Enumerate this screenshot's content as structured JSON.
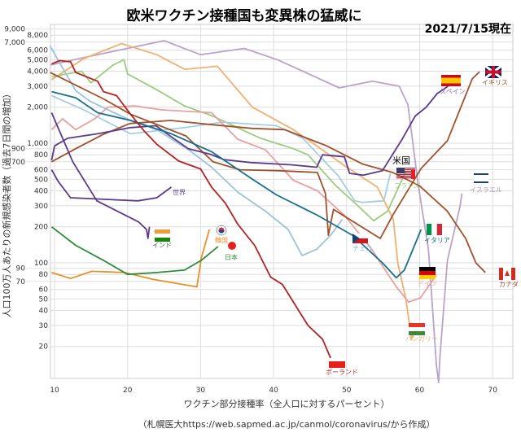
{
  "chart_data": {
    "type": "line",
    "title": "欧米ワクチン接種国も変異株の猛威に",
    "date_note": "2021/7/15現在",
    "xlabel": "ワクチン部分接種率（全人口に対するパーセント）",
    "ylabel": "人口100万人あたりの新規感染者数（過去7日間の増加）",
    "source": "（札幌医大https://web.sapmed.ac.jp/canmol/coronavirus/から作成）",
    "xlim": [
      9.4,
      72.5
    ],
    "ylim": [
      9.5,
      10000
    ],
    "yscale": "log",
    "grid": true,
    "x_ticks": [
      10,
      20,
      30,
      40,
      50,
      60,
      70
    ],
    "x_tick_labels": [
      "10",
      "20",
      "30",
      "40",
      "50",
      "60",
      "70"
    ],
    "y_ticks": [
      20,
      30,
      40,
      50,
      60,
      70,
      80,
      90,
      100,
      200,
      300,
      400,
      500,
      600,
      700,
      800,
      900,
      1000,
      2000,
      3000,
      4000,
      5000,
      6000,
      7000,
      8000,
      9000
    ],
    "y_tick_labels": [
      "20",
      "30",
      "40",
      "50",
      "60",
      "70",
      "80",
      "90",
      "100",
      "200",
      "300",
      "400",
      "500",
      "600",
      "700",
      "800",
      "900",
      "1,000",
      "2,000",
      "3,000",
      "4,000",
      "5,000",
      "6,000",
      "7,000",
      "8,000",
      "9,000"
    ],
    "series": [
      {
        "name": "イスラエル",
        "color": "#b9a3cc",
        "points": [
          [
            9.4,
            4500
          ],
          [
            14,
            5200
          ],
          [
            25,
            7200
          ],
          [
            30,
            5500
          ],
          [
            36,
            6200
          ],
          [
            40.5,
            5000
          ],
          [
            44,
            4000
          ],
          [
            49,
            2900
          ],
          [
            53.5,
            3300
          ],
          [
            57.2,
            3000
          ],
          [
            58.4,
            2100
          ],
          [
            59.8,
            450
          ],
          [
            61.2,
            130
          ],
          [
            62.3,
            14
          ],
          [
            62.6,
            10
          ],
          [
            62.8,
            17
          ],
          [
            63.8,
            105
          ],
          [
            65.5,
            290
          ],
          [
            65.8,
            380
          ]
        ]
      },
      {
        "name": "ハンガリー",
        "color": "#f0b070",
        "points": [
          [
            9.6,
            3400
          ],
          [
            14,
            5100
          ],
          [
            19.2,
            6800
          ],
          [
            24,
            5500
          ],
          [
            27.8,
            4150
          ],
          [
            32.3,
            4400
          ],
          [
            37.1,
            2000
          ],
          [
            42.7,
            1300
          ],
          [
            46.7,
            880
          ],
          [
            49.7,
            650
          ],
          [
            54.2,
            430
          ],
          [
            56.4,
            230
          ],
          [
            57,
            100
          ],
          [
            58.1,
            50
          ],
          [
            58.9,
            23
          ],
          [
            59.4,
            28
          ]
        ]
      },
      {
        "name": "フランス",
        "color": "#9acd7a",
        "points": [
          [
            9.6,
            3600
          ],
          [
            13.7,
            4000
          ],
          [
            15,
            3200
          ],
          [
            18,
            4500
          ],
          [
            19.5,
            5000
          ],
          [
            20,
            3800
          ],
          [
            24,
            2800
          ],
          [
            27.8,
            2050
          ],
          [
            31.5,
            1700
          ],
          [
            38.2,
            1100
          ],
          [
            42.7,
            900
          ],
          [
            44.7,
            800
          ],
          [
            48.4,
            450
          ],
          [
            51.8,
            290
          ],
          [
            53.7,
            225
          ],
          [
            55.6,
            270
          ],
          [
            58.1,
            580
          ]
        ]
      },
      {
        "name": "チェコ",
        "color": "#99c4d8",
        "points": [
          [
            9.4,
            6500
          ],
          [
            10.7,
            4700
          ],
          [
            12.9,
            2750
          ],
          [
            14.8,
            2250
          ],
          [
            20.4,
            1550
          ],
          [
            24,
            1300
          ],
          [
            28.5,
            870
          ],
          [
            31.5,
            630
          ],
          [
            35.1,
            390
          ],
          [
            38.9,
            270
          ],
          [
            42,
            190
          ],
          [
            43.9,
            115
          ],
          [
            45.9,
            130
          ],
          [
            47.8,
            170
          ],
          [
            49.4,
            230
          ]
        ]
      },
      {
        "name": "米国",
        "color": "#a8cde0",
        "points": [
          [
            9.6,
            2500
          ],
          [
            14,
            1900
          ],
          [
            20.4,
            1200
          ],
          [
            27.8,
            1350
          ],
          [
            33,
            1500
          ],
          [
            40.4,
            1400
          ],
          [
            44,
            1100
          ],
          [
            48.9,
            530
          ],
          [
            51.1,
            330
          ],
          [
            52.2,
            320
          ],
          [
            55.1,
            330
          ],
          [
            56,
            560
          ]
        ]
      },
      {
        "name": "ドイツ",
        "color": "#e8a0a0",
        "points": [
          [
            9.6,
            1300
          ],
          [
            11.1,
            1600
          ],
          [
            12.9,
            1300
          ],
          [
            15.5,
            1600
          ],
          [
            17.3,
            2000
          ],
          [
            21,
            2050
          ],
          [
            24.7,
            1900
          ],
          [
            31.5,
            1800
          ],
          [
            35.1,
            1080
          ],
          [
            38.9,
            880
          ],
          [
            42.7,
            490
          ],
          [
            46,
            400
          ],
          [
            49.7,
            250
          ],
          [
            53.5,
            128
          ],
          [
            56.8,
            63
          ],
          [
            58.5,
            47
          ],
          [
            60.1,
            51
          ],
          [
            62.3,
            79
          ]
        ]
      },
      {
        "name": "カナダ",
        "color": "#a0522d",
        "points": [
          [
            9.6,
            700
          ],
          [
            12.9,
            900
          ],
          [
            16.6,
            1180
          ],
          [
            20.3,
            1460
          ],
          [
            25.9,
            1550
          ],
          [
            31.5,
            1430
          ],
          [
            37.1,
            1330
          ],
          [
            41.5,
            1300
          ],
          [
            47.1,
            960
          ],
          [
            52.2,
            670
          ],
          [
            56.3,
            570
          ],
          [
            60,
            440
          ],
          [
            63.8,
            270
          ],
          [
            66.3,
            160
          ],
          [
            67.7,
            100
          ],
          [
            69,
            83
          ]
        ]
      },
      {
        "name": "イギリス",
        "color": "#a0522d",
        "points": [
          [
            9.4,
            3900
          ],
          [
            16.7,
            2350
          ],
          [
            20.4,
            1750
          ],
          [
            28,
            1150
          ],
          [
            31.7,
            700
          ],
          [
            35.4,
            600
          ],
          [
            40.4,
            590
          ],
          [
            46,
            570
          ],
          [
            47.1,
            380
          ],
          [
            47.5,
            170
          ],
          [
            48.2,
            280
          ],
          [
            54.6,
            160
          ],
          [
            56.4,
            255
          ],
          [
            60.2,
            615
          ],
          [
            63.8,
            1050
          ],
          [
            67.2,
            3450
          ],
          [
            68.2,
            3960
          ]
        ]
      },
      {
        "name": "スペイン",
        "color": "#5b3a8c",
        "points": [
          [
            9.6,
            720
          ],
          [
            10,
            950
          ],
          [
            11.8,
            1100
          ],
          [
            15.9,
            1200
          ],
          [
            20.4,
            1350
          ],
          [
            23.9,
            1400
          ],
          [
            25,
            1250
          ],
          [
            28.3,
            900
          ],
          [
            31.3,
            810
          ],
          [
            33.2,
            730
          ],
          [
            36.8,
            690
          ],
          [
            42.4,
            660
          ],
          [
            45.9,
            630
          ],
          [
            46.7,
            800
          ],
          [
            49.7,
            770
          ],
          [
            50.4,
            560
          ],
          [
            52.3,
            540
          ],
          [
            54.9,
            590
          ],
          [
            57.6,
            1080
          ],
          [
            59.4,
            1690
          ],
          [
            60.9,
            2000
          ],
          [
            62.4,
            2600
          ],
          [
            63.9,
            3000
          ]
        ]
      },
      {
        "name": "世界",
        "color": "#5b3a8c",
        "points": [
          [
            9.6,
            600
          ],
          [
            10.5,
            480
          ],
          [
            12.2,
            350
          ],
          [
            21.4,
            330
          ],
          [
            24,
            350
          ],
          [
            26,
            430
          ]
        ]
      },
      {
        "name": "インド",
        "color": "#5b3a8c",
        "points": [
          [
            9.6,
            1800
          ],
          [
            12.5,
            700
          ],
          [
            15.8,
            330
          ],
          [
            21.5,
            220
          ],
          [
            22.6,
            190
          ],
          [
            22.8,
            160
          ],
          [
            23,
            200
          ]
        ]
      },
      {
        "name": "イタリア",
        "color": "#1a6e8e",
        "points": [
          [
            9.6,
            2700
          ],
          [
            12.9,
            2400
          ],
          [
            15.9,
            1800
          ],
          [
            20.4,
            1550
          ],
          [
            26,
            1200
          ],
          [
            31.5,
            850
          ],
          [
            37.1,
            500
          ],
          [
            40.4,
            370
          ],
          [
            46,
            250
          ],
          [
            50.8,
            170
          ],
          [
            54.9,
            100
          ],
          [
            56.8,
            75
          ],
          [
            57.9,
            87
          ],
          [
            60.2,
            190
          ]
        ]
      },
      {
        "name": "ポーランド",
        "color": "#b22222",
        "points": [
          [
            9.6,
            4600
          ],
          [
            10.7,
            4900
          ],
          [
            12.2,
            4800
          ],
          [
            12.9,
            3900
          ],
          [
            15.9,
            3300
          ],
          [
            16.7,
            2700
          ],
          [
            18.5,
            2500
          ],
          [
            20.4,
            1750
          ],
          [
            22.2,
            1280
          ],
          [
            24,
            980
          ],
          [
            27,
            710
          ],
          [
            30,
            610
          ],
          [
            31.5,
            430
          ],
          [
            33.4,
            315
          ],
          [
            35.1,
            210
          ],
          [
            37.4,
            140
          ],
          [
            39.6,
            76
          ],
          [
            41.2,
            66
          ],
          [
            43,
            44
          ],
          [
            44.7,
            30
          ],
          [
            46.7,
            23
          ],
          [
            47.8,
            16
          ]
        ]
      },
      {
        "name": "韓国",
        "color": "#e8902a",
        "points": [
          [
            9.6,
            83
          ],
          [
            12.2,
            74
          ],
          [
            15.1,
            85
          ],
          [
            19.6,
            83
          ],
          [
            23.4,
            73
          ],
          [
            29.5,
            63
          ],
          [
            30.1,
            110
          ],
          [
            31.2,
            190
          ]
        ]
      },
      {
        "name": "日本",
        "color": "#2e8b3a",
        "points": [
          [
            9.6,
            200
          ],
          [
            12.9,
            140
          ],
          [
            16.7,
            105
          ],
          [
            20,
            80
          ],
          [
            24,
            83
          ],
          [
            27.8,
            87
          ],
          [
            30.1,
            105
          ],
          [
            32.4,
            137
          ]
        ]
      }
    ],
    "annotations": [
      {
        "text": "スペイン",
        "color": "#8a6aa8",
        "flag": "spain"
      },
      {
        "text": "イギリス",
        "color": "#a0522d",
        "flag": "uk"
      },
      {
        "text": "米国",
        "color": "#000000",
        "flag": "us"
      },
      {
        "text": "フランス",
        "color": "#9acd7a",
        "flag": "none"
      },
      {
        "text": "イスラエル",
        "color": "#a898b8",
        "flag": "israel"
      },
      {
        "text": "世界",
        "color": "#5b3a8c",
        "flag": "none"
      },
      {
        "text": "インド",
        "color": "#555555",
        "flag": "india"
      },
      {
        "text": "韓国",
        "color": "#e8902a",
        "flag": "korea"
      },
      {
        "text": "日本",
        "color": "#2e8b3a",
        "flag": "japan"
      },
      {
        "text": "チェコ",
        "color": "#88b8d0",
        "flag": "czech"
      },
      {
        "text": "イタリア",
        "color": "#1a6e8e",
        "flag": "italy"
      },
      {
        "text": "ドイツ",
        "color": "#e8a0a0",
        "flag": "germany"
      },
      {
        "text": "カナダ",
        "color": "#a0522d",
        "flag": "canada"
      },
      {
        "text": "ハンガリー",
        "color": "#e8b070",
        "flag": "hungary"
      },
      {
        "text": "ポーランド",
        "color": "#b22222",
        "flag": "poland"
      }
    ]
  }
}
